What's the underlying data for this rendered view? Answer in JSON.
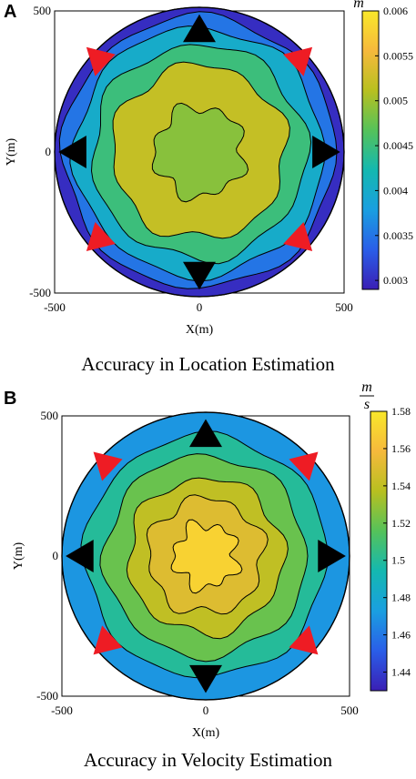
{
  "panels": [
    {
      "letter": "A",
      "caption": "Accuracy in Location Estimation",
      "xlabel": "X(m)",
      "ylabel": "Y(m)",
      "unit_top": "m",
      "unit_bottom": "",
      "xticks": [
        "-500",
        "0",
        "500"
      ],
      "yticks": [
        "500",
        "0",
        "-500"
      ],
      "colorbar_ticks": [
        "0.006",
        "0.0055",
        "0.005",
        "0.0045",
        "0.004",
        "0.0035",
        "0.003"
      ]
    },
    {
      "letter": "B",
      "caption": "Accuracy in Velocity Estimation",
      "xlabel": "X(m)",
      "ylabel": "Y(m)",
      "unit_top": "m",
      "unit_bottom": "s",
      "xticks": [
        "-500",
        "0",
        "500"
      ],
      "yticks": [
        "500",
        "0",
        "-500"
      ],
      "colorbar_ticks": [
        "1.58",
        "1.56",
        "1.54",
        "1.52",
        "1.5",
        "1.48",
        "1.46",
        "1.44"
      ]
    }
  ],
  "colors": {
    "level_colors": [
      "#3a1fb5",
      "#2a5ee8",
      "#1a9fe0",
      "#14b8b0",
      "#55c25a",
      "#b8c020",
      "#f6b93c",
      "#f9e82a"
    ],
    "sensor_black": "#000000",
    "sensor_red": "#ee1c24"
  },
  "chart_data": [
    {
      "type": "heatmap",
      "title": "Accuracy in Location Estimation",
      "xlabel": "X(m)",
      "ylabel": "Y(m)",
      "colorbar_label": "m",
      "xlim": [
        -500,
        500
      ],
      "ylim": [
        -500,
        500
      ],
      "colorbar_range": [
        0.0029,
        0.006
      ],
      "colorbar_ticks": [
        0.003,
        0.0035,
        0.004,
        0.0045,
        0.005,
        0.0055,
        0.006
      ],
      "contour_levels": [
        {
          "radius": 500,
          "value": 0.003
        },
        {
          "radius": 470,
          "value": 0.0035
        },
        {
          "radius": 430,
          "value": 0.004
        },
        {
          "radius": 370,
          "value": 0.0045
        },
        {
          "radius": 300,
          "value": 0.0052
        },
        {
          "radius": 155,
          "value": 0.0049
        }
      ],
      "black_sensors": [
        [
          0,
          430
        ],
        [
          0,
          -430
        ],
        [
          -430,
          0
        ],
        [
          430,
          0
        ]
      ],
      "red_sensors": [
        [
          -340,
          320
        ],
        [
          340,
          320
        ],
        [
          -340,
          -300
        ],
        [
          340,
          -300
        ]
      ]
    },
    {
      "type": "heatmap",
      "title": "Accuracy in Velocity Estimation",
      "xlabel": "X(m)",
      "ylabel": "Y(m)",
      "colorbar_label": "m/s",
      "xlim": [
        -500,
        500
      ],
      "ylim": [
        -500,
        500
      ],
      "colorbar_range": [
        1.43,
        1.58
      ],
      "colorbar_ticks": [
        1.44,
        1.46,
        1.48,
        1.5,
        1.52,
        1.54,
        1.56,
        1.58
      ],
      "contour_levels": [
        {
          "radius": 500,
          "value": 1.47
        },
        {
          "radius": 420,
          "value": 1.5
        },
        {
          "radius": 350,
          "value": 1.52
        },
        {
          "radius": 270,
          "value": 1.54
        },
        {
          "radius": 200,
          "value": 1.55
        },
        {
          "radius": 110,
          "value": 1.57
        }
      ],
      "black_sensors": [
        [
          0,
          430
        ],
        [
          0,
          -430
        ],
        [
          -430,
          0
        ],
        [
          430,
          0
        ]
      ],
      "red_sensors": [
        [
          -340,
          320
        ],
        [
          340,
          320
        ],
        [
          -340,
          -300
        ],
        [
          340,
          -300
        ]
      ]
    }
  ]
}
